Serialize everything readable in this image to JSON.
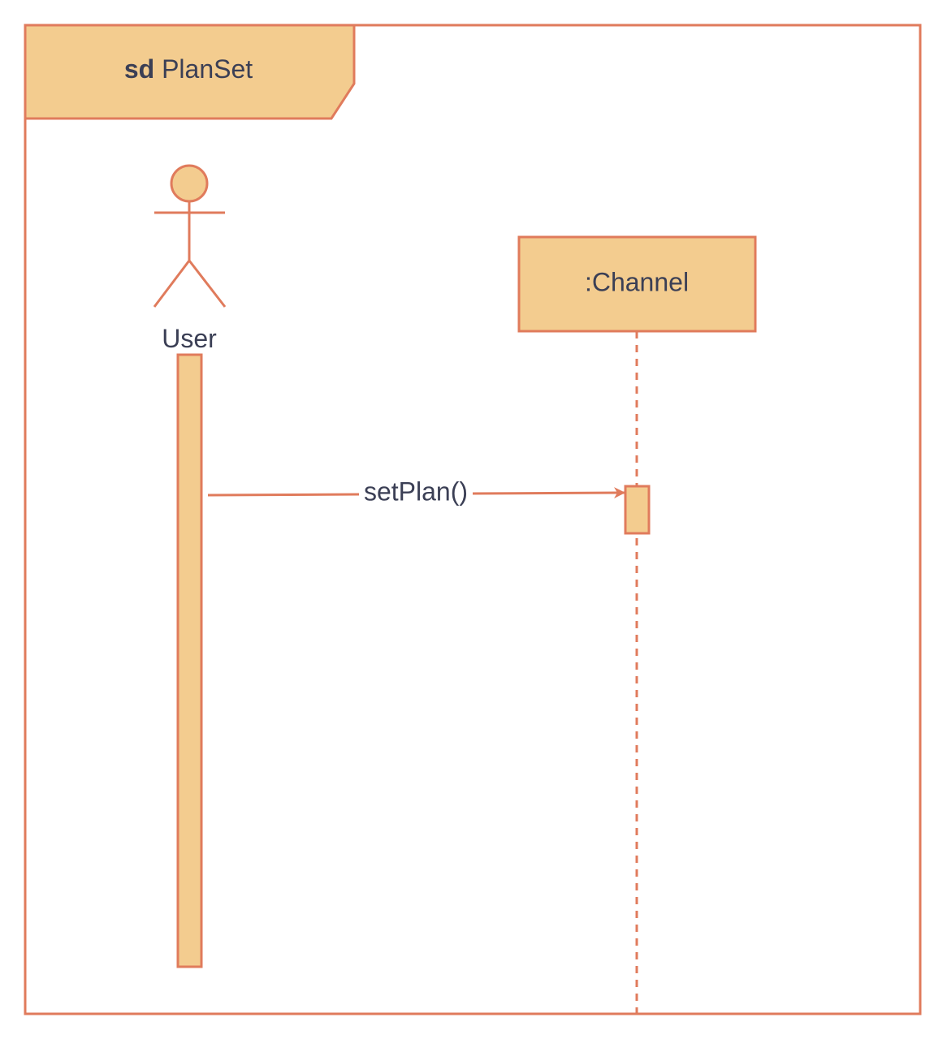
{
  "frame": {
    "keyword": "sd",
    "name": "PlanSet"
  },
  "actor": {
    "name": "User",
    "icon": "stick-figure-actor-icon"
  },
  "lifeline": {
    "name": ":Channel"
  },
  "message": {
    "label": "setPlan()",
    "kind": "synchronous-call"
  },
  "colors": {
    "stroke": "#e07b5c",
    "fill": "#f3cc8f",
    "text": "#3b3f55",
    "background": "#ffffff"
  }
}
